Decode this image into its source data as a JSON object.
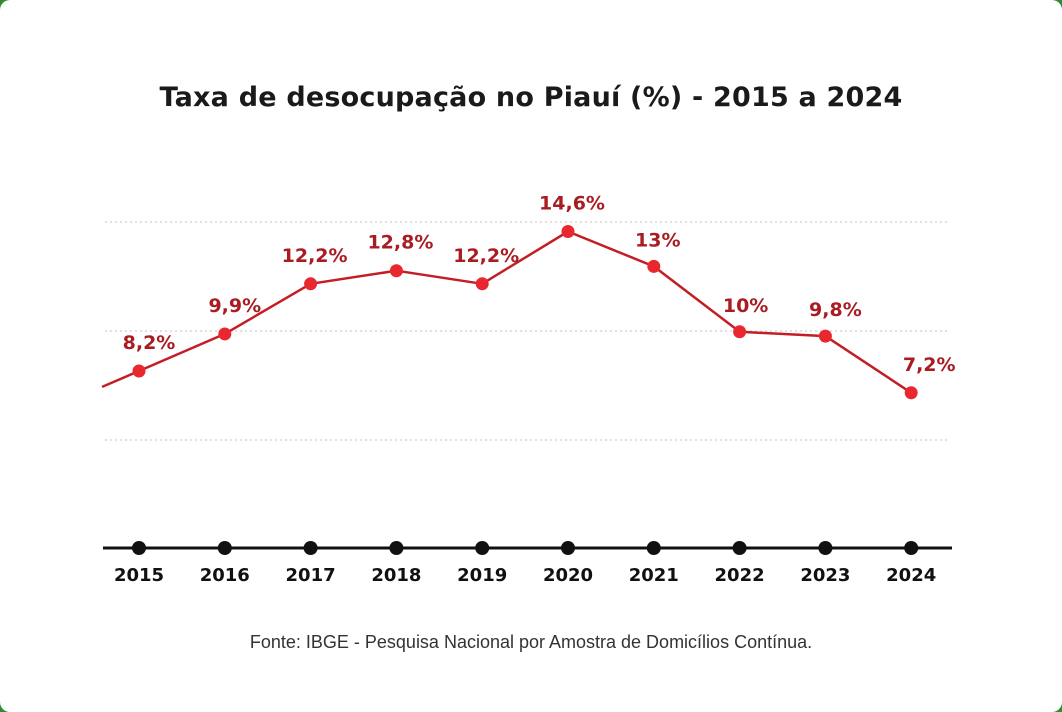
{
  "chart_data": {
    "type": "line",
    "title": "Taxa de desocupação no Piauí (%) - 2015 a 2024",
    "categories": [
      "2015",
      "2016",
      "2017",
      "2018",
      "2019",
      "2020",
      "2021",
      "2022",
      "2023",
      "2024"
    ],
    "values": [
      8.2,
      9.9,
      12.2,
      12.8,
      12.2,
      14.6,
      13,
      10,
      9.8,
      7.2
    ],
    "data_labels": [
      "8,2%",
      "9,9%",
      "12,2%",
      "12,8%",
      "12,2%",
      "14,6%",
      "13%",
      "10%",
      "9,8%",
      "7,2%"
    ],
    "xlabel": "",
    "ylabel": "",
    "grid": true,
    "line_color": "#c41e25",
    "marker_color": "#e8282e",
    "label_color": "#a81c22",
    "axis_color": "#111111"
  },
  "source": "Fonte: IBGE - Pesquisa Nacional por Amostra de Domicílios Contínua."
}
